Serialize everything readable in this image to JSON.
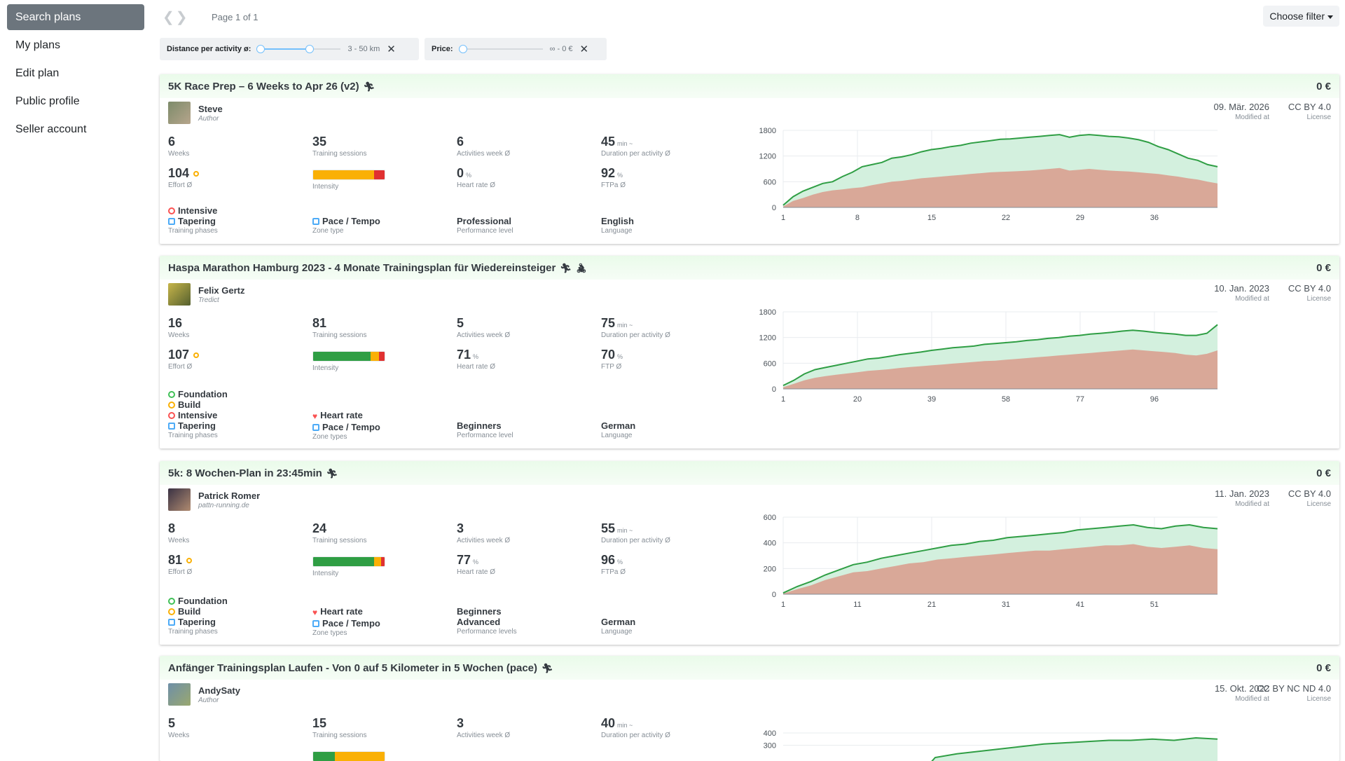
{
  "sidebar": {
    "items": [
      "Search plans",
      "My plans",
      "Edit plan",
      "Public profile",
      "Seller account"
    ]
  },
  "topbar": {
    "page_info": "Page 1 of 1",
    "filter_button": "Choose filter"
  },
  "filters": {
    "distance": {
      "label": "Distance per activity ø:",
      "value": "3 - 50 km",
      "range_fraction": [
        0,
        0.5
      ]
    },
    "price": {
      "label": "Price:",
      "value": "∞ - 0 €",
      "range_fraction": [
        0,
        0
      ]
    }
  },
  "colors": {
    "curve": "#2f9e44",
    "area_light": "#d3f0de",
    "area_dark": "#d9a898",
    "intensity_green": "#2f9e44",
    "intensity_yellow": "#fab005",
    "intensity_red": "#e03131"
  },
  "plans": [
    {
      "title": "5K Race Prep – 6 Weeks to Apr 26 (v2)",
      "sports": [
        "running-icon"
      ],
      "price": "0 €",
      "author": {
        "name": "Steve",
        "sub": "Author"
      },
      "modified": "09. Mär. 2026",
      "modified_label": "Modified at",
      "license": "CC BY 4.0",
      "license_label": "License",
      "weeks": "6",
      "weeks_label": "Weeks",
      "sessions": "35",
      "sessions_label": "Training sessions",
      "activities_week": "6",
      "activities_week_label": "Activities week Ø",
      "duration": "45",
      "duration_unit": "min ~",
      "duration_label": "Duration per activity Ø",
      "effort": "104",
      "effort_label": "Effort Ø",
      "intensity_label": "Intensity",
      "intensity": [
        0,
        85,
        15
      ],
      "hr": "0",
      "hr_unit": "%",
      "hr_label": "Heart rate Ø",
      "ftp": "92",
      "ftp_unit": "%",
      "ftp_label": "FTPa Ø",
      "phases": [
        "Intensive",
        "Tapering"
      ],
      "phases_label": "Training phases",
      "zones": [
        "Pace / Tempo"
      ],
      "zones_label": "Zone type",
      "level": [
        "Professional"
      ],
      "level_label": "Performance level",
      "language": "English",
      "language_label": "Language"
    },
    {
      "title": "Haspa Marathon Hamburg 2023 - 4 Monate Trainingsplan für Wiedereinsteiger",
      "sports": [
        "running-icon",
        "cycling-icon"
      ],
      "price": "0 €",
      "author": {
        "name": "Felix Gertz",
        "sub": "Tredict"
      },
      "modified": "10. Jan. 2023",
      "modified_label": "Modified at",
      "license": "CC BY 4.0",
      "license_label": "License",
      "weeks": "16",
      "weeks_label": "Weeks",
      "sessions": "81",
      "sessions_label": "Training sessions",
      "activities_week": "5",
      "activities_week_label": "Activities week Ø",
      "duration": "75",
      "duration_unit": "min ~",
      "duration_label": "Duration per activity Ø",
      "effort": "107",
      "effort_label": "Effort Ø",
      "intensity_label": "Intensity",
      "intensity": [
        80,
        12,
        8
      ],
      "hr": "71",
      "hr_unit": "%",
      "hr_label": "Heart rate Ø",
      "ftp": "70",
      "ftp_unit": "%",
      "ftp_label": "FTP Ø",
      "phases": [
        "Foundation",
        "Build",
        "Intensive",
        "Tapering"
      ],
      "phases_label": "Training phases",
      "zones": [
        "Heart rate",
        "Pace / Tempo"
      ],
      "zones_label": "Zone types",
      "level": [
        "Beginners"
      ],
      "level_label": "Performance level",
      "language": "German",
      "language_label": "Language"
    },
    {
      "title": "5k: 8 Wochen-Plan in 23:45min",
      "sports": [
        "running-icon"
      ],
      "price": "0 €",
      "author": {
        "name": "Patrick Romer",
        "sub": "pattn-running.de"
      },
      "modified": "11. Jan. 2023",
      "modified_label": "Modified at",
      "license": "CC BY 4.0",
      "license_label": "License",
      "weeks": "8",
      "weeks_label": "Weeks",
      "sessions": "24",
      "sessions_label": "Training sessions",
      "activities_week": "3",
      "activities_week_label": "Activities week Ø",
      "duration": "55",
      "duration_unit": "min ~",
      "duration_label": "Duration per activity Ø",
      "effort": "81",
      "effort_label": "Effort Ø",
      "intensity_label": "Intensity",
      "intensity": [
        85,
        10,
        5
      ],
      "hr": "77",
      "hr_unit": "%",
      "hr_label": "Heart rate Ø",
      "ftp": "96",
      "ftp_unit": "%",
      "ftp_label": "FTPa Ø",
      "phases": [
        "Foundation",
        "Build",
        "Tapering"
      ],
      "phases_label": "Training phases",
      "zones": [
        "Heart rate",
        "Pace / Tempo"
      ],
      "zones_label": "Zone types",
      "level": [
        "Beginners",
        "Advanced"
      ],
      "level_label": "Performance levels",
      "language": "German",
      "language_label": "Language"
    },
    {
      "title": "Anfänger Trainingsplan Laufen - Von 0 auf 5 Kilometer in 5 Wochen (pace)",
      "sports": [
        "running-icon"
      ],
      "price": "0 €",
      "author": {
        "name": "AndySaty",
        "sub": "Author"
      },
      "modified": "15. Okt. 2022",
      "modified_label": "Modified at",
      "license": "CC BY NC ND 4.0",
      "license_label": "License",
      "weeks": "5",
      "weeks_label": "Weeks",
      "sessions": "15",
      "sessions_label": "Training sessions",
      "activities_week": "3",
      "activities_week_label": "Activities week Ø",
      "duration": "40",
      "duration_unit": "min ~",
      "duration_label": "Duration per activity Ø",
      "intensity": [
        30,
        70,
        0
      ]
    }
  ],
  "chart_data": [
    {
      "type": "area",
      "x_ticks": [
        "1",
        "8",
        "15",
        "22",
        "29",
        "36"
      ],
      "ylim": [
        0,
        1800
      ],
      "y_ticks": [
        "0",
        "600",
        "1200",
        "1800"
      ],
      "series": [
        {
          "values": [
            50,
            250,
            380,
            470,
            560,
            600,
            720,
            820,
            950,
            1000,
            1050,
            1150,
            1180,
            1230,
            1300,
            1350,
            1380,
            1420,
            1450,
            1500,
            1530,
            1560,
            1590,
            1600,
            1620,
            1640,
            1660,
            1680,
            1700,
            1640,
            1680,
            1700,
            1680,
            1660,
            1650,
            1620,
            1580,
            1520,
            1420,
            1350,
            1250,
            1150,
            1100,
            1000,
            950
          ]
        },
        {
          "values": [
            20,
            150,
            220,
            300,
            360,
            400,
            420,
            450,
            470,
            520,
            560,
            600,
            620,
            650,
            680,
            700,
            720,
            740,
            760,
            780,
            800,
            820,
            830,
            840,
            850,
            860,
            880,
            900,
            920,
            860,
            880,
            900,
            880,
            860,
            850,
            840,
            820,
            800,
            780,
            750,
            720,
            680,
            650,
            600,
            560
          ]
        }
      ]
    },
    {
      "type": "area",
      "x_ticks": [
        "1",
        "20",
        "39",
        "58",
        "77",
        "96"
      ],
      "ylim": [
        0,
        1800
      ],
      "y_ticks": [
        "0",
        "600",
        "1200",
        "1800"
      ],
      "series": [
        {
          "values": [
            80,
            200,
            350,
            450,
            500,
            550,
            600,
            650,
            700,
            720,
            760,
            800,
            830,
            860,
            900,
            930,
            960,
            980,
            1000,
            1040,
            1060,
            1080,
            1100,
            1130,
            1150,
            1180,
            1200,
            1230,
            1250,
            1280,
            1300,
            1320,
            1350,
            1370,
            1350,
            1320,
            1300,
            1280,
            1250,
            1250,
            1300,
            1500
          ]
        },
        {
          "values": [
            40,
            120,
            200,
            260,
            300,
            330,
            360,
            390,
            420,
            440,
            460,
            490,
            510,
            530,
            550,
            570,
            590,
            610,
            630,
            650,
            660,
            680,
            700,
            720,
            740,
            760,
            780,
            800,
            820,
            840,
            860,
            880,
            900,
            920,
            900,
            880,
            860,
            840,
            800,
            780,
            820,
            900
          ]
        }
      ]
    },
    {
      "type": "area",
      "x_ticks": [
        "1",
        "11",
        "21",
        "31",
        "41",
        "51"
      ],
      "ylim": [
        0,
        600
      ],
      "y_ticks": [
        "0",
        "200",
        "400",
        "600"
      ],
      "series": [
        {
          "values": [
            10,
            60,
            100,
            150,
            190,
            230,
            250,
            280,
            300,
            320,
            340,
            360,
            380,
            390,
            410,
            420,
            440,
            450,
            460,
            470,
            480,
            500,
            510,
            520,
            530,
            540,
            520,
            510,
            530,
            540,
            520,
            510
          ]
        },
        {
          "values": [
            5,
            40,
            70,
            110,
            140,
            170,
            180,
            200,
            220,
            240,
            250,
            270,
            280,
            290,
            300,
            310,
            320,
            330,
            340,
            340,
            350,
            360,
            370,
            380,
            380,
            390,
            370,
            360,
            370,
            380,
            360,
            350
          ]
        }
      ]
    },
    {
      "type": "area",
      "x_ticks": [],
      "ylim": [
        0,
        400
      ],
      "y_ticks": [
        "300",
        "400"
      ],
      "series": [
        {
          "values": [
            0,
            0,
            0,
            0,
            0,
            0,
            0,
            200,
            230,
            250,
            270,
            290,
            310,
            320,
            330,
            340,
            340,
            350,
            340,
            360,
            350
          ]
        }
      ]
    }
  ]
}
